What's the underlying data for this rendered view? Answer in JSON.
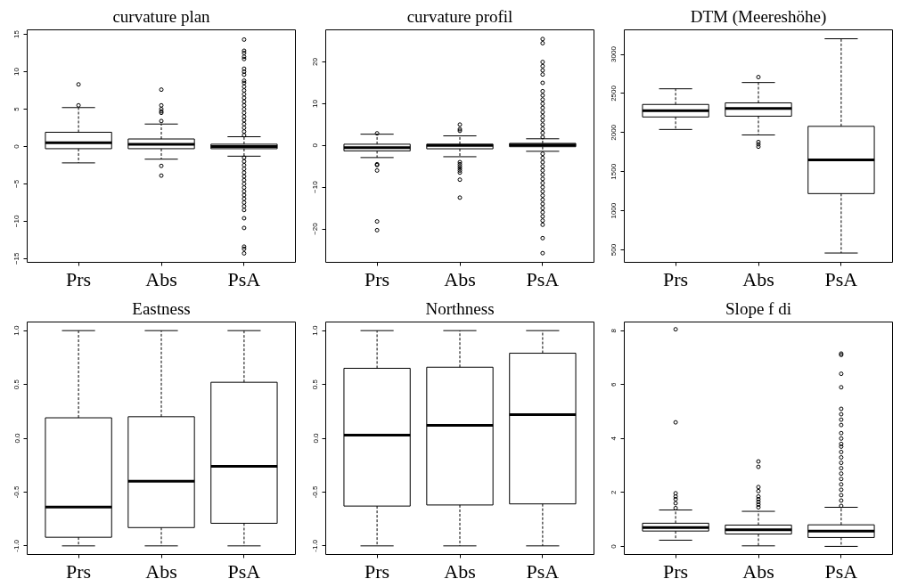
{
  "chart_data": [
    {
      "type": "box",
      "title": "curvature plan",
      "categories": [
        "Prs",
        "Abs",
        "PsA"
      ],
      "ylim": [
        -15.5,
        15.6
      ],
      "yticks": [
        -15,
        -10,
        -5,
        0,
        5,
        10,
        15
      ],
      "boxes": [
        {
          "low": -2.2,
          "q1": -0.3,
          "median": 0.5,
          "q3": 1.9,
          "high": 5.2,
          "outliers": [
            5.5,
            8.3
          ]
        },
        {
          "low": -1.7,
          "q1": -0.3,
          "median": 0.3,
          "q3": 1.0,
          "high": 3.0,
          "outliers": [
            3.4,
            4.5,
            4.7,
            5.0,
            5.5,
            7.6,
            -2.6,
            -3.9
          ]
        },
        {
          "low": -1.3,
          "q1": -0.3,
          "median": 0.0,
          "q3": 0.3,
          "high": 1.3,
          "outliers": [
            1.5,
            2,
            2.5,
            3,
            3.5,
            4,
            4.5,
            5,
            5.5,
            6,
            6.5,
            7,
            7.5,
            8,
            8.5,
            8.8,
            9.6,
            10,
            10.4,
            11.7,
            12,
            12.5,
            12.8,
            14.3,
            -1.5,
            -2,
            -2.5,
            -3,
            -3.5,
            -4,
            -4.5,
            -5,
            -5.5,
            -6,
            -6.5,
            -7,
            -7.5,
            -8,
            -8.5,
            -9.6,
            -10.9,
            -13.4,
            -13.7,
            -14.3
          ]
        }
      ]
    },
    {
      "type": "box",
      "title": "curvature profil",
      "categories": [
        "Prs",
        "Abs",
        "PsA"
      ],
      "ylim": [
        -28,
        27.7
      ],
      "yticks": [
        -20,
        -10,
        0,
        10,
        20
      ],
      "boxes": [
        {
          "low": -2.9,
          "q1": -1.3,
          "median": -0.5,
          "q3": 0.3,
          "high": 2.7,
          "outliers": [
            2.9,
            -4.5,
            -4.7,
            -6,
            -18.2,
            -20.3
          ]
        },
        {
          "low": -2.7,
          "q1": -0.8,
          "median": 0.0,
          "q3": 0.3,
          "high": 2.3,
          "outliers": [
            3.5,
            3.9,
            5,
            -4,
            -4.5,
            -5,
            -5.5,
            -6,
            -6.5,
            -8.2,
            -12.5
          ]
        },
        {
          "low": -1.4,
          "q1": -0.3,
          "median": 0.1,
          "q3": 0.5,
          "high": 1.6,
          "outliers": [
            2,
            3,
            4,
            5,
            6,
            7,
            8,
            9,
            10,
            11,
            12,
            13,
            15,
            17,
            18,
            19,
            20,
            24.5,
            25.5,
            -2,
            -3,
            -4,
            -5,
            -6,
            -7,
            -8,
            -9,
            -10,
            -11,
            -12,
            -13,
            -14,
            -15,
            -16,
            -17,
            -18,
            -19,
            -22.2,
            -25.8
          ]
        }
      ]
    },
    {
      "type": "box",
      "title": "DTM (Meereshöhe)",
      "categories": [
        "Prs",
        "Abs",
        "PsA"
      ],
      "ylim": [
        341,
        3314
      ],
      "yticks": [
        500,
        1000,
        1500,
        2000,
        2500,
        3000
      ],
      "boxes": [
        {
          "low": 2040,
          "q1": 2200,
          "median": 2280,
          "q3": 2360,
          "high": 2560
        },
        {
          "low": 1970,
          "q1": 2210,
          "median": 2310,
          "q3": 2380,
          "high": 2640,
          "outliers": [
            2710,
            1880,
            1850,
            1820
          ]
        },
        {
          "low": 460,
          "q1": 1220,
          "median": 1650,
          "q3": 2080,
          "high": 3200
        }
      ]
    },
    {
      "type": "box",
      "title": "Eastness",
      "categories": [
        "Prs",
        "Abs",
        "PsA"
      ],
      "ylim": [
        -1.08,
        1.08
      ],
      "yticks": [
        {
          "value": -1,
          "label": "-1.0"
        },
        {
          "value": -0.5,
          "label": "-0.5"
        },
        {
          "value": 0,
          "label": "0.0"
        },
        {
          "value": 0.5,
          "label": "0.5"
        },
        {
          "value": 1,
          "label": "1.0"
        }
      ],
      "boxes": [
        {
          "low": -1,
          "q1": -0.92,
          "median": -0.64,
          "q3": 0.19,
          "high": 1
        },
        {
          "low": -1,
          "q1": -0.83,
          "median": -0.4,
          "q3": 0.2,
          "high": 1
        },
        {
          "low": -1,
          "q1": -0.79,
          "median": -0.26,
          "q3": 0.52,
          "high": 1
        }
      ]
    },
    {
      "type": "box",
      "title": "Northness",
      "categories": [
        "Prs",
        "Abs",
        "PsA"
      ],
      "ylim": [
        -1.08,
        1.08
      ],
      "yticks": [
        {
          "value": -1,
          "label": "-1.0"
        },
        {
          "value": -0.5,
          "label": "-0.5"
        },
        {
          "value": 0,
          "label": "0.0"
        },
        {
          "value": 0.5,
          "label": "0.5"
        },
        {
          "value": 1,
          "label": "1.0"
        }
      ],
      "boxes": [
        {
          "low": -1,
          "q1": -0.63,
          "median": 0.03,
          "q3": 0.65,
          "high": 1
        },
        {
          "low": -1,
          "q1": -0.62,
          "median": 0.12,
          "q3": 0.66,
          "high": 1
        },
        {
          "low": -1,
          "q1": -0.61,
          "median": 0.22,
          "q3": 0.79,
          "high": 1
        }
      ]
    },
    {
      "type": "box",
      "title": "Slope f di",
      "categories": [
        "Prs",
        "Abs",
        "PsA"
      ],
      "ylim": [
        -0.3,
        8.32
      ],
      "yticks": [
        0,
        2,
        4,
        6,
        8
      ],
      "boxes": [
        {
          "low": 0.23,
          "q1": 0.57,
          "median": 0.7,
          "q3": 0.86,
          "high": 1.35,
          "outliers": [
            1.42,
            1.6,
            1.75,
            1.85,
            1.97,
            4.6,
            8.05
          ]
        },
        {
          "low": 0.02,
          "q1": 0.46,
          "median": 0.62,
          "q3": 0.79,
          "high": 1.3,
          "outliers": [
            1.45,
            1.55,
            1.65,
            1.75,
            1.85,
            2.05,
            2.2,
            2.95,
            3.15
          ]
        },
        {
          "low": 0.0,
          "q1": 0.33,
          "median": 0.57,
          "q3": 0.8,
          "high": 1.45,
          "outliers": [
            1.5,
            1.7,
            1.9,
            2.1,
            2.3,
            2.5,
            2.7,
            2.9,
            3.1,
            3.3,
            3.5,
            3.7,
            3.8,
            4.0,
            4.2,
            4.5,
            4.7,
            4.9,
            5.1,
            5.9,
            6.4,
            7.1,
            7.15
          ]
        }
      ]
    }
  ]
}
